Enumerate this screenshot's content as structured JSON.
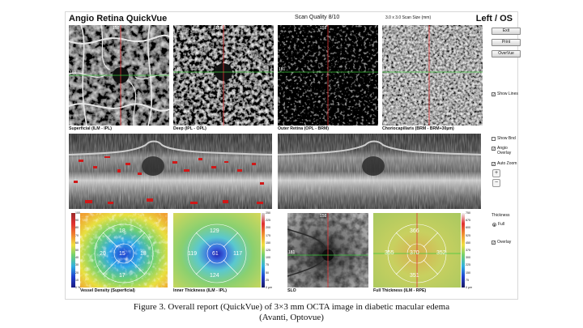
{
  "header": {
    "title": "Angio Retina QuickVue",
    "scan_quality": "Scan Quality 8/10",
    "scan_size": "3.0 x 3.0 Scan Size (mm)",
    "eye": "Left / OS"
  },
  "buttons": {
    "exit": "Exit",
    "print": "Print",
    "overvue": "OverVue"
  },
  "angio_panels": [
    {
      "caption": "Superficial (ILM - IPL)",
      "top_marker": "158",
      "side_marker": "181"
    },
    {
      "caption": "Deep (IPL - OPL)",
      "top_marker": "158",
      "side_marker": "181"
    },
    {
      "caption": "Outer Retina (OPL - BRM)",
      "top_marker": "158",
      "side_marker": "181"
    },
    {
      "caption": "Choriocapillaris (BRM - BRM+30µm)",
      "top_marker": "158",
      "side_marker": "181"
    }
  ],
  "options": {
    "show_lines": {
      "label": "Show Lines",
      "checked": true
    },
    "show_bnd": {
      "label": "Show Bnd",
      "checked": false
    },
    "angio_overlay": {
      "label": "Angio Overlay",
      "checked": true
    },
    "auto_zoom": {
      "label": "Auto Zoom",
      "checked": true
    },
    "overlay": {
      "label": "Overlay",
      "checked": true
    }
  },
  "thickness": {
    "label": "Thickness",
    "full_option": "Full",
    "full_selected": true
  },
  "maps": [
    {
      "caption": "Vessel Density (Superficial)",
      "values": {
        "center": "15",
        "superior": "18",
        "inferior": "17",
        "temporal": "20",
        "nasal": "18"
      },
      "scale": [
        "100",
        "90",
        "80",
        "70",
        "60",
        "50",
        "40",
        "30",
        "20",
        "10",
        "0 %"
      ]
    },
    {
      "caption": "Inner Thickness (ILM - IPL)",
      "values": {
        "center": "61",
        "superior": "129",
        "inferior": "124",
        "temporal": "119",
        "nasal": "117"
      },
      "scale": [
        "250",
        "225",
        "200",
        "175",
        "150",
        "125",
        "100",
        "75",
        "50",
        "25",
        "0 µm"
      ]
    },
    {
      "caption": "SLO",
      "top_marker": "158",
      "side_marker": "181"
    },
    {
      "caption": "Full Thickness (ILM - RPE)",
      "values": {
        "center": "370",
        "superior": "366",
        "inferior": "351",
        "temporal": "355",
        "nasal": "352"
      },
      "scale": [
        "750",
        "675",
        "600",
        "525",
        "450",
        "375",
        "300",
        "225",
        "150",
        "75",
        "0 µm"
      ]
    }
  ],
  "figure_caption": {
    "line1": "Figure 3. Overall report (QuickVue) of 3×3 mm OCTA image in diabetic macular edema",
    "line2": "(Avanti, Optovue)"
  },
  "colors": {
    "crosshair_vertical": "#e23232",
    "crosshair_horizontal": "#3cc83c",
    "flow_overlay": "#d01818"
  }
}
